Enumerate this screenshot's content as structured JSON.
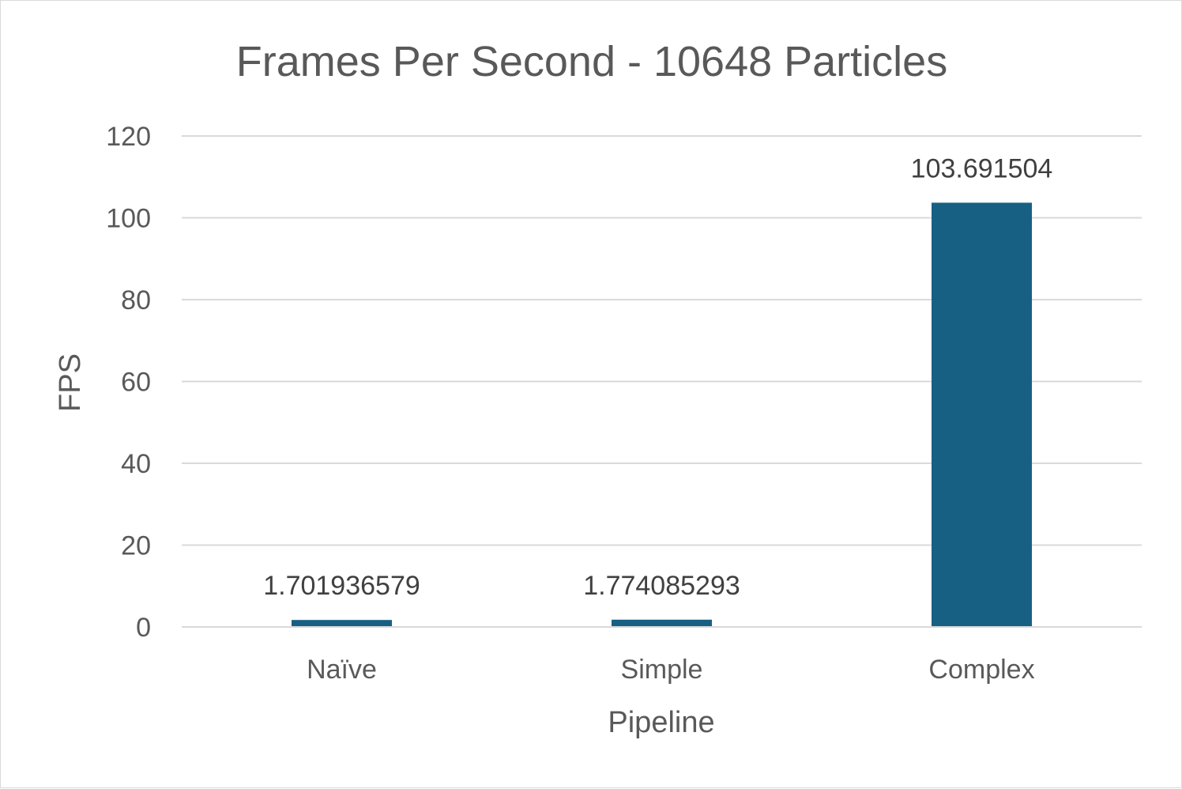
{
  "chart_data": {
    "type": "bar",
    "title": "Frames Per Second - 10648 Particles",
    "xlabel": "Pipeline",
    "ylabel": "FPS",
    "categories": [
      "Naïve",
      "Simple",
      "Complex"
    ],
    "values": [
      1.701936579,
      1.774085293,
      103.691504
    ],
    "data_labels": [
      "1.701936579",
      "1.774085293",
      "103.691504"
    ],
    "ylim": [
      0,
      120
    ],
    "yticks": [
      0,
      20,
      40,
      60,
      80,
      100,
      120
    ],
    "grid": true,
    "legend": "none",
    "colors": {
      "bar": "#176083",
      "gridline": "#d9d9d9",
      "text": "#595959"
    }
  }
}
